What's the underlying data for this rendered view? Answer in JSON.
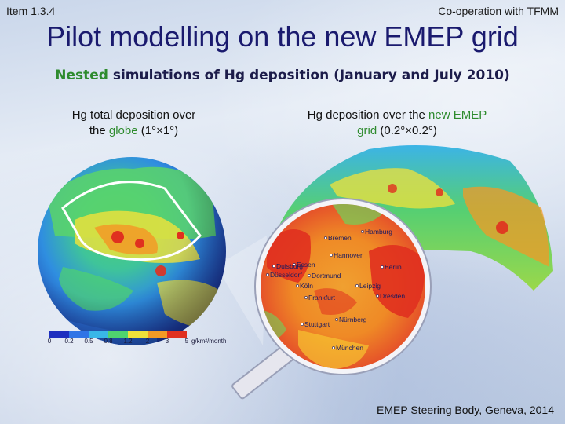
{
  "header": {
    "item": "Item 1.3.4",
    "cooperation": "Co-operation with TFMM",
    "title": "Pilot modelling on the new EMEP grid",
    "subtitle_highlight": "Nested",
    "subtitle_rest": " simulations of Hg deposition (January and July 2010)"
  },
  "left_panel": {
    "caption_line1": "Hg total deposition over",
    "caption_line2_pre": "the ",
    "caption_line2_highlight": "globe",
    "caption_line2_post": " (1°×1°)",
    "legend_ticks": [
      "0",
      "0.2",
      "0.5",
      "0.8",
      "1.2",
      "2",
      "3",
      "5"
    ],
    "legend_unit": "g/km²/month",
    "legend_colors": [
      "#1e2fbf",
      "#2f74e6",
      "#39b7e8",
      "#4fd36e",
      "#f0e23a",
      "#f29a26",
      "#e0301f"
    ]
  },
  "right_panel": {
    "caption_line1_pre": "Hg deposition over the ",
    "caption_line1_highlight": "new EMEP",
    "caption_line2_highlight": "grid",
    "caption_line2_post": " (0.2°×0.2°)",
    "cities": [
      "Bremen",
      "Hamburg",
      "Hannover",
      "Essen",
      "Berlin",
      "Duisburg",
      "Düsseldorf",
      "Dortmund",
      "Köln",
      "Leipzig",
      "Frankfurt",
      "Dresden",
      "Nürnberg",
      "Stuttgart",
      "München"
    ]
  },
  "footer": {
    "text": "EMEP Steering Body, Geneva, 2014"
  }
}
